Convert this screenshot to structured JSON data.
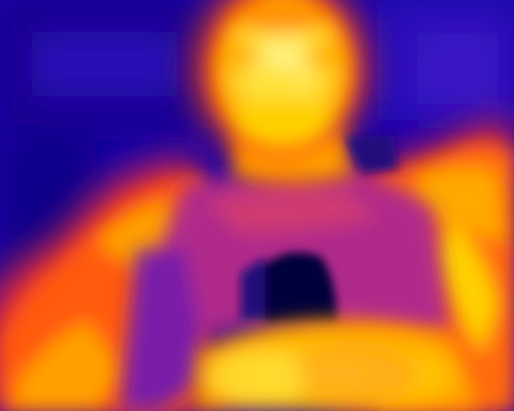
{
  "image": {
    "kind": "thermal-infrared-photo",
    "palette": "ironbow",
    "subject": "person-upper-body-lifting-shirt",
    "colors": {
      "cold_deep": "#06003a",
      "cold": "#1a00a8",
      "cool": "#3c10c8",
      "mid": "#8a1aa8",
      "warm": "#ff4a10",
      "hot": "#ff9a00",
      "hottest": "#ffe23a",
      "white_hot": "#fff6a0"
    }
  }
}
